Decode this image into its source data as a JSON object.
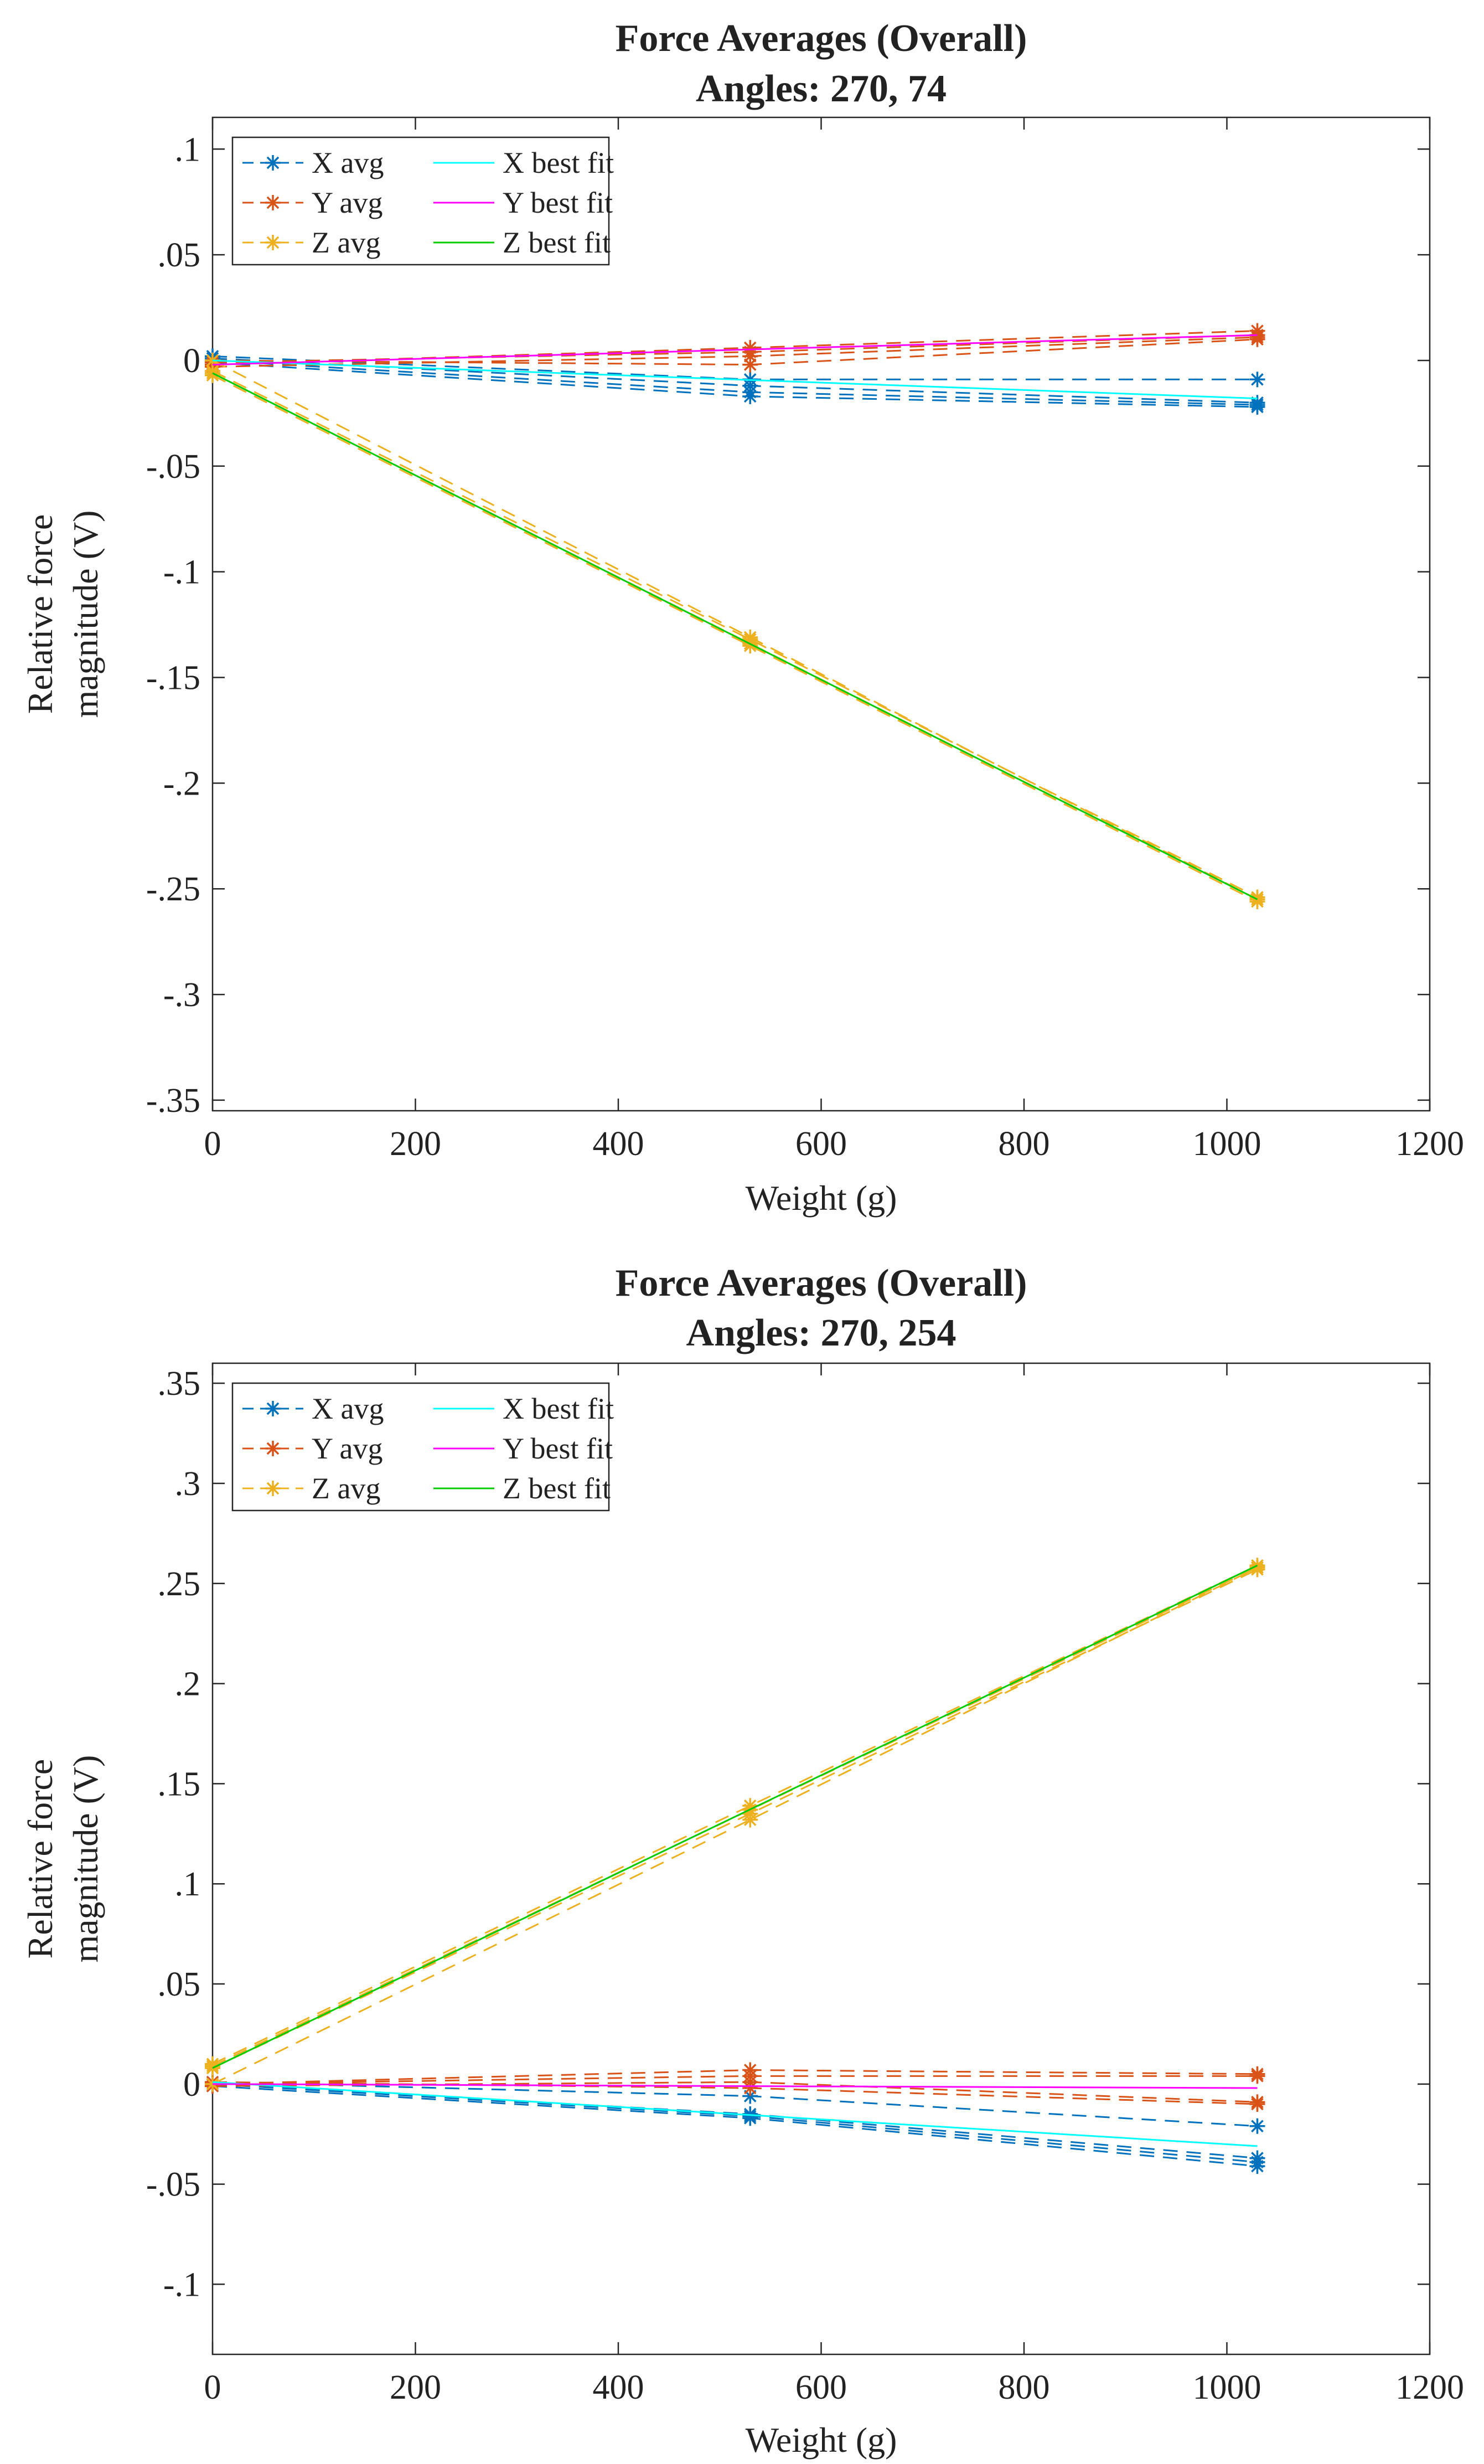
{
  "chart_data": [
    {
      "type": "line",
      "title": "Force Averages (Overall)",
      "subtitle": "Angles: 270, 74",
      "xlabel": "Weight (g)",
      "ylabel": [
        "Relative force",
        "magnitude (V)"
      ],
      "xlim": [
        0,
        1200
      ],
      "ylim": [
        -0.355,
        0.115
      ],
      "xticks": [
        0,
        200,
        400,
        600,
        800,
        1000,
        1200
      ],
      "yticks": [
        -0.35,
        -0.3,
        -0.25,
        -0.2,
        -0.15,
        -0.1,
        -0.05,
        0,
        0.05,
        0.1
      ],
      "grid": false,
      "legend": {
        "position": "top-left",
        "entries": [
          {
            "label": "X avg",
            "color": "#0072BD",
            "style": "dashed-marker"
          },
          {
            "label": "Y avg",
            "color": "#D95319",
            "style": "dashed-marker"
          },
          {
            "label": "Z avg",
            "color": "#EDB120",
            "style": "dashed-marker"
          },
          {
            "label": "X best fit",
            "color": "#00FFFF",
            "style": "solid"
          },
          {
            "label": "Y best fit",
            "color": "#FF00FF",
            "style": "solid"
          },
          {
            "label": "Z best fit",
            "color": "#00CC00",
            "style": "solid"
          }
        ]
      },
      "series": [
        {
          "name": "X avg",
          "color": "#0072BD",
          "style": "dashed",
          "x": [
            0,
            530,
            1030
          ],
          "y": [
            0.002,
            -0.009,
            -0.009
          ]
        },
        {
          "name": "X avg",
          "color": "#0072BD",
          "style": "dashed",
          "x": [
            0,
            530,
            1030
          ],
          "y": [
            0.001,
            -0.012,
            -0.02
          ]
        },
        {
          "name": "X avg",
          "color": "#0072BD",
          "style": "dashed",
          "x": [
            0,
            530,
            1030
          ],
          "y": [
            0.0,
            -0.015,
            -0.021
          ]
        },
        {
          "name": "X avg",
          "color": "#0072BD",
          "style": "dashed",
          "x": [
            0,
            530,
            1030
          ],
          "y": [
            -0.001,
            -0.017,
            -0.022
          ]
        },
        {
          "name": "Y avg",
          "color": "#D95319",
          "style": "dashed",
          "x": [
            0,
            530,
            1030
          ],
          "y": [
            -0.002,
            0.006,
            0.014
          ]
        },
        {
          "name": "Y avg",
          "color": "#D95319",
          "style": "dashed",
          "x": [
            0,
            530,
            1030
          ],
          "y": [
            -0.001,
            0.004,
            0.012
          ]
        },
        {
          "name": "Y avg",
          "color": "#D95319",
          "style": "dashed",
          "x": [
            0,
            530,
            1030
          ],
          "y": [
            -0.003,
            0.002,
            0.011
          ]
        },
        {
          "name": "Y avg",
          "color": "#D95319",
          "style": "dashed",
          "x": [
            0,
            530,
            1030
          ],
          "y": [
            0.0,
            -0.002,
            0.01
          ]
        },
        {
          "name": "Z avg",
          "color": "#EDB120",
          "style": "dashed",
          "x": [
            0,
            530,
            1030
          ],
          "y": [
            -0.005,
            -0.132,
            -0.254
          ]
        },
        {
          "name": "Z avg",
          "color": "#EDB120",
          "style": "dashed",
          "x": [
            0,
            530,
            1030
          ],
          "y": [
            -0.006,
            -0.134,
            -0.255
          ]
        },
        {
          "name": "Z avg",
          "color": "#EDB120",
          "style": "dashed",
          "x": [
            0,
            530,
            1030
          ],
          "y": [
            -0.007,
            -0.135,
            -0.256
          ]
        },
        {
          "name": "Z avg",
          "color": "#EDB120",
          "style": "dashed",
          "x": [
            0,
            530,
            1030
          ],
          "y": [
            0.0,
            -0.131,
            -0.255
          ]
        },
        {
          "name": "X best fit",
          "color": "#00FFFF",
          "style": "solid",
          "x": [
            0,
            1030
          ],
          "y": [
            0.0,
            -0.018
          ]
        },
        {
          "name": "Y best fit",
          "color": "#FF00FF",
          "style": "solid",
          "x": [
            0,
            1030
          ],
          "y": [
            -0.002,
            0.012
          ]
        },
        {
          "name": "Z best fit",
          "color": "#00CC00",
          "style": "solid",
          "x": [
            0,
            1030
          ],
          "y": [
            -0.006,
            -0.255
          ]
        }
      ]
    },
    {
      "type": "line",
      "title": "Force Averages (Overall)",
      "subtitle": "Angles: 270, 254",
      "xlabel": "Weight (g)",
      "ylabel": [
        "Relative force",
        "magnitude (V)"
      ],
      "xlim": [
        0,
        1200
      ],
      "ylim": [
        -0.135,
        0.36
      ],
      "xticks": [
        0,
        200,
        400,
        600,
        800,
        1000,
        1200
      ],
      "yticks": [
        -0.1,
        -0.05,
        0,
        0.05,
        0.1,
        0.15,
        0.2,
        0.25,
        0.3,
        0.35
      ],
      "grid": false,
      "legend": {
        "position": "top-left",
        "entries": [
          {
            "label": "X avg",
            "color": "#0072BD",
            "style": "dashed-marker"
          },
          {
            "label": "Y avg",
            "color": "#D95319",
            "style": "dashed-marker"
          },
          {
            "label": "Z avg",
            "color": "#EDB120",
            "style": "dashed-marker"
          },
          {
            "label": "X best fit",
            "color": "#00FFFF",
            "style": "solid"
          },
          {
            "label": "Y best fit",
            "color": "#FF00FF",
            "style": "solid"
          },
          {
            "label": "Z best fit",
            "color": "#00CC00",
            "style": "solid"
          }
        ]
      },
      "series": [
        {
          "name": "X avg",
          "color": "#0072BD",
          "style": "dashed",
          "x": [
            0,
            530,
            1030
          ],
          "y": [
            0.001,
            -0.006,
            -0.021
          ]
        },
        {
          "name": "X avg",
          "color": "#0072BD",
          "style": "dashed",
          "x": [
            0,
            530,
            1030
          ],
          "y": [
            0.0,
            -0.015,
            -0.037
          ]
        },
        {
          "name": "X avg",
          "color": "#0072BD",
          "style": "dashed",
          "x": [
            0,
            530,
            1030
          ],
          "y": [
            0.0,
            -0.016,
            -0.039
          ]
        },
        {
          "name": "X avg",
          "color": "#0072BD",
          "style": "dashed",
          "x": [
            0,
            530,
            1030
          ],
          "y": [
            -0.001,
            -0.017,
            -0.041
          ]
        },
        {
          "name": "Y avg",
          "color": "#D95319",
          "style": "dashed",
          "x": [
            0,
            530,
            1030
          ],
          "y": [
            0.0,
            0.007,
            0.005
          ]
        },
        {
          "name": "Y avg",
          "color": "#D95319",
          "style": "dashed",
          "x": [
            0,
            530,
            1030
          ],
          "y": [
            0.0,
            0.004,
            0.004
          ]
        },
        {
          "name": "Y avg",
          "color": "#D95319",
          "style": "dashed",
          "x": [
            0,
            530,
            1030
          ],
          "y": [
            -0.001,
            0.001,
            -0.009
          ]
        },
        {
          "name": "Y avg",
          "color": "#D95319",
          "style": "dashed",
          "x": [
            0,
            530,
            1030
          ],
          "y": [
            0.001,
            -0.002,
            -0.01
          ]
        },
        {
          "name": "Z avg",
          "color": "#EDB120",
          "style": "dashed",
          "x": [
            0,
            530,
            1030
          ],
          "y": [
            0.01,
            0.139,
            0.259
          ]
        },
        {
          "name": "Z avg",
          "color": "#EDB120",
          "style": "dashed",
          "x": [
            0,
            530,
            1030
          ],
          "y": [
            0.009,
            0.137,
            0.258
          ]
        },
        {
          "name": "Z avg",
          "color": "#EDB120",
          "style": "dashed",
          "x": [
            0,
            530,
            1030
          ],
          "y": [
            0.008,
            0.135,
            0.257
          ]
        },
        {
          "name": "Z avg",
          "color": "#EDB120",
          "style": "dashed",
          "x": [
            0,
            530,
            1030
          ],
          "y": [
            0.0,
            0.132,
            0.258
          ]
        },
        {
          "name": "X best fit",
          "color": "#00FFFF",
          "style": "solid",
          "x": [
            0,
            1030
          ],
          "y": [
            0.001,
            -0.031
          ]
        },
        {
          "name": "Y best fit",
          "color": "#FF00FF",
          "style": "solid",
          "x": [
            0,
            1030
          ],
          "y": [
            0.0,
            -0.002
          ]
        },
        {
          "name": "Z best fit",
          "color": "#00CC00",
          "style": "solid",
          "x": [
            0,
            1030
          ],
          "y": [
            0.008,
            0.259
          ]
        }
      ]
    }
  ]
}
